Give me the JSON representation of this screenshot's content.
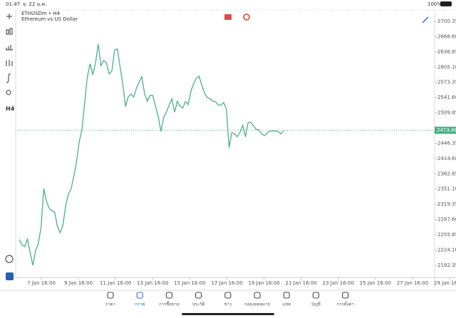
{
  "status_bar": {
    "time": "01:47",
    "date": "จ. 22 ม.ค.",
    "battery": "100%"
  },
  "toolbar": {
    "timeframe": "H4"
  },
  "chart": {
    "type": "line",
    "symbol": "ETHUSDm • H4",
    "description": "Ethereum vs US Dollar",
    "color": "#4caf8a",
    "values": [
      2246,
      2235,
      2231,
      2247,
      2219,
      2192,
      2223,
      2237,
      2271,
      2352,
      2326,
      2311,
      2306,
      2303,
      2274,
      2260,
      2275,
      2315,
      2340,
      2351,
      2377,
      2407,
      2449,
      2475,
      2530,
      2585,
      2612,
      2589,
      2614,
      2653,
      2608,
      2619,
      2614,
      2591,
      2597,
      2641,
      2643,
      2606,
      2570,
      2523,
      2543,
      2549,
      2543,
      2561,
      2574,
      2585,
      2549,
      2534,
      2546,
      2546,
      2524,
      2502,
      2471,
      2500,
      2511,
      2526,
      2539,
      2511,
      2534,
      2524,
      2520,
      2533,
      2527,
      2555,
      2571,
      2582,
      2586,
      2567,
      2551,
      2542,
      2539,
      2534,
      2533,
      2526,
      2526,
      2531,
      2518,
      2437,
      2469,
      2466,
      2460,
      2469,
      2484,
      2460,
      2490,
      2490,
      2483,
      2475,
      2474,
      2466,
      2462,
      2468,
      2472,
      2472,
      2472,
      2471,
      2466,
      2473
    ],
    "ylim": [
      2167,
      2724
    ],
    "yticks": [
      2700.35,
      {
        "value": 2668.6,
        "label": "2668.60"
      },
      2636.85,
      {
        "value": 2605.1,
        "label": "2605.10"
      },
      2573.35,
      {
        "value": 2541.6,
        "label": "2541.60"
      },
      2509.85,
      2446.35,
      {
        "value": 2414.6,
        "label": "2414.60"
      },
      2382.85,
      {
        "value": 2351.1,
        "label": "2351.10"
      },
      2319.35,
      {
        "value": 2287.6,
        "label": "2287.60"
      },
      2255.85,
      {
        "value": 2224.1,
        "label": "2224.10"
      },
      2192.35
    ],
    "current_price": 2473.48,
    "x_labels": [
      "7 Jan 16:00",
      "9 Jan 16:00",
      "11 Jan 16:00",
      "13 Jan 16:00",
      "15 Jan 16:00",
      "17 Jan 16:00",
      "19 Jan 16:00",
      "21 Jan 16:00",
      "23 Jan 16:00",
      "25 Jan 16:00",
      "27 Jan 16:00",
      "29 Jan 16:00"
    ]
  },
  "nav": {
    "items": [
      "ราคา",
      "กราฟ",
      "การซื้อขาย",
      "ประวัติ",
      "ข่าว",
      "กล่องจดหมาย",
      "แชท",
      "บัญชี",
      "การตั้งค่า"
    ],
    "active": 1
  }
}
